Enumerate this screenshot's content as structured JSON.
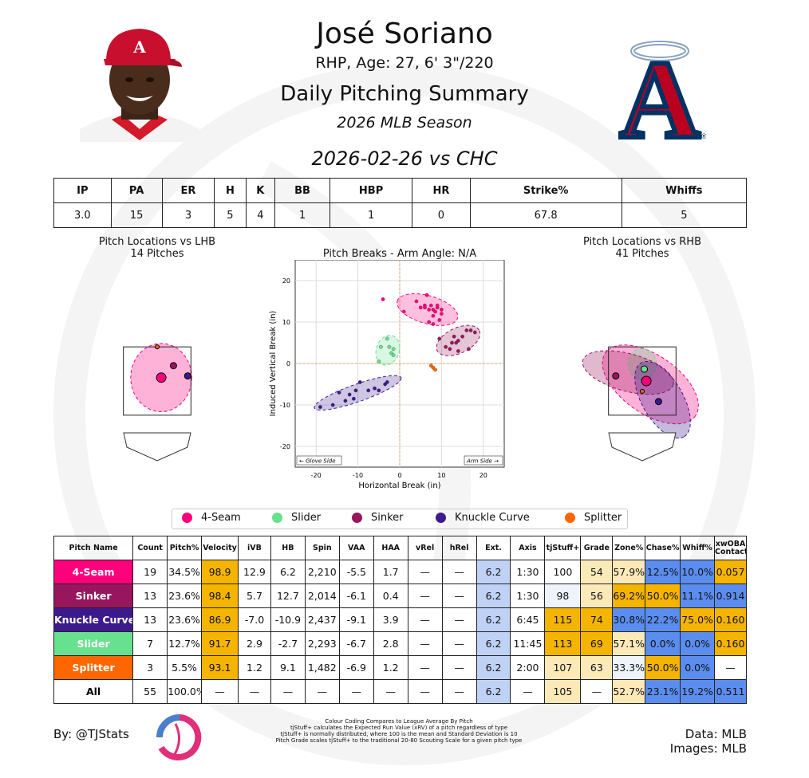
{
  "player": {
    "name": "José Soriano",
    "bio": "RHP, Age: 27, 6' 3\"/220",
    "summary_title": "Daily Pitching Summary",
    "season": "2026 MLB Season",
    "game": "2026-02-26 vs CHC"
  },
  "colors": {
    "four_seam": "#FF007D",
    "sinker": "#98165D",
    "knuckle_curve": "#3C1A8C",
    "slider": "#67E18D",
    "splitter": "#FF6600",
    "above_avg": "#F4B400",
    "below_avg": "#5B8DEF",
    "brand": "#BA0021"
  },
  "line_score": {
    "headers": [
      "IP",
      "PA",
      "ER",
      "H",
      "K",
      "BB",
      "HBP",
      "HR",
      "Strike%",
      "Whiffs"
    ],
    "values": [
      "3.0",
      "15",
      "3",
      "5",
      "4",
      "1",
      "1",
      "0",
      "67.8",
      "5"
    ]
  },
  "pitch_table": {
    "headers": [
      "Pitch Name",
      "Count",
      "Pitch%",
      "Velocity",
      "iVB",
      "HB",
      "Spin",
      "VAA",
      "HAA",
      "vRel",
      "hRel",
      "Ext.",
      "Axis",
      "tjStuff+",
      "Grade",
      "Zone%",
      "Chase%",
      "Whiff%",
      "xwOBA Contact"
    ],
    "rows": [
      {
        "name": "4-Seam",
        "color": "#FF007D",
        "cells": [
          "19",
          "34.5%",
          "98.9",
          "12.9",
          "6.2",
          "2,210",
          "-5.5",
          "1.7",
          "—",
          "—",
          "6.2",
          "1:30",
          "100",
          "54",
          "57.9%",
          "12.5%",
          "10.0%",
          "0.057"
        ]
      },
      {
        "name": "Sinker",
        "color": "#98165D",
        "cells": [
          "13",
          "23.6%",
          "98.4",
          "5.7",
          "12.7",
          "2,014",
          "-6.1",
          "0.4",
          "—",
          "—",
          "6.2",
          "1:30",
          "98",
          "56",
          "69.2%",
          "50.0%",
          "11.1%",
          "0.914"
        ]
      },
      {
        "name": "Knuckle Curve",
        "color": "#3C1A8C",
        "cells": [
          "13",
          "23.6%",
          "86.9",
          "-7.0",
          "-10.9",
          "2,437",
          "-9.1",
          "3.9",
          "—",
          "—",
          "6.2",
          "6:45",
          "115",
          "74",
          "30.8%",
          "22.2%",
          "75.0%",
          "0.160"
        ]
      },
      {
        "name": "Slider",
        "color": "#67E18D",
        "cells": [
          "7",
          "12.7%",
          "91.7",
          "2.9",
          "-2.7",
          "2,293",
          "-6.7",
          "2.8",
          "—",
          "—",
          "6.2",
          "11:45",
          "113",
          "69",
          "57.1%",
          "0.0%",
          "0.0%",
          "0.160"
        ]
      },
      {
        "name": "Splitter",
        "color": "#FF6600",
        "cells": [
          "3",
          "5.5%",
          "93.1",
          "1.2",
          "9.1",
          "1,482",
          "-6.9",
          "1.2",
          "—",
          "—",
          "6.2",
          "2:00",
          "107",
          "63",
          "33.3%",
          "50.0%",
          "0.0%",
          "—"
        ]
      },
      {
        "name": "All",
        "color": "#FFFFFF",
        "cells": [
          "55",
          "100.0%",
          "—",
          "—",
          "—",
          "—",
          "—",
          "—",
          "—",
          "—",
          "6.2",
          "—",
          "105",
          "—",
          "52.7%",
          "23.1%",
          "19.2%",
          "0.511"
        ]
      }
    ],
    "cell_colors": [
      [
        "#fff",
        "#fff",
        "#F4B400",
        "#fff",
        "#fff",
        "#fff",
        "#fff",
        "#fff",
        "#fff",
        "#fff",
        "#BFD2F6",
        "#fff",
        "#fff",
        "#FCE9B8",
        "#FCE9B8",
        "#5B8DEF",
        "#5B8DEF",
        "#F4B400"
      ],
      [
        "#fff",
        "#fff",
        "#F4B400",
        "#fff",
        "#fff",
        "#fff",
        "#fff",
        "#fff",
        "#fff",
        "#fff",
        "#BFD2F6",
        "#fff",
        "#EEF3FC",
        "#FCE9B8",
        "#F4B400",
        "#F4B400",
        "#5B8DEF",
        "#5B8DEF"
      ],
      [
        "#fff",
        "#fff",
        "#F4B400",
        "#fff",
        "#fff",
        "#fff",
        "#fff",
        "#fff",
        "#fff",
        "#fff",
        "#BFD2F6",
        "#fff",
        "#F4B400",
        "#F4B400",
        "#5B8DEF",
        "#5B8DEF",
        "#F4B400",
        "#F4B400"
      ],
      [
        "#fff",
        "#fff",
        "#F4B400",
        "#fff",
        "#fff",
        "#fff",
        "#fff",
        "#fff",
        "#fff",
        "#fff",
        "#BFD2F6",
        "#fff",
        "#F4B400",
        "#F4B400",
        "#FCE9B8",
        "#5B8DEF",
        "#5B8DEF",
        "#F4B400"
      ],
      [
        "#fff",
        "#fff",
        "#F4B400",
        "#fff",
        "#fff",
        "#fff",
        "#fff",
        "#fff",
        "#fff",
        "#fff",
        "#BFD2F6",
        "#fff",
        "#FCE9B8",
        "#FCE9B8",
        "#EEF3FC",
        "#F4B400",
        "#5B8DEF",
        "#fff"
      ],
      [
        "#fff",
        "#fff",
        "#fff",
        "#fff",
        "#fff",
        "#fff",
        "#fff",
        "#fff",
        "#fff",
        "#fff",
        "#BFD2F6",
        "#fff",
        "#FCE9B8",
        "#fff",
        "#FCE9B8",
        "#5B8DEF",
        "#5B8DEF",
        "#5B8DEF"
      ]
    ]
  },
  "legend": [
    "4-Seam",
    "Slider",
    "Sinker",
    "Knuckle Curve",
    "Splitter"
  ],
  "footer": {
    "by": "By: @TJStats",
    "notes": [
      "Colour Coding Compares to League Average By Pitch",
      "tjStuff+ calculates the Expected Run Value (xRV) of a pitch regardless of type",
      "tjStuff+ is normally distributed, where 100 is the mean and Standard Deviation is 10",
      "Pitch Grade scales tjStuff+ to the traditional 20-80 Scouting Scale for a given pitch type"
    ],
    "data_source": "Data: MLB",
    "image_source": "Images: MLB"
  },
  "logo": {
    "letter": "A"
  },
  "chart_data": [
    {
      "type": "scatter",
      "title": "Pitch Locations vs LHB",
      "subtitle": "14 Pitches",
      "xlabel": "",
      "ylabel": "",
      "points": [
        {
          "pitch": "4-Seam",
          "x": 0.1,
          "y": 2.6,
          "mean": true
        },
        {
          "pitch": "Sinker",
          "x": 0.4,
          "y": 2.95,
          "mean": true
        },
        {
          "pitch": "Knuckle Curve",
          "x": 0.75,
          "y": 2.65,
          "mean": true
        },
        {
          "pitch": "Splitter",
          "x": 0.0,
          "y": 3.5,
          "mean": true
        }
      ],
      "ellipses": [
        {
          "pitch": "4-Seam",
          "cx": 0.1,
          "cy": 2.6,
          "rx": 0.75,
          "ry": 1.0,
          "angle": 0
        }
      ]
    },
    {
      "type": "scatter",
      "title": "Pitch Breaks - Arm Angle: N/A",
      "xlabel": "Horizontal Break (in)",
      "ylabel": "Induced Vertical Break (in)",
      "xlim": [
        -25,
        25
      ],
      "ylim": [
        -25,
        25
      ],
      "xticks": [
        -20,
        -10,
        0,
        10,
        20
      ],
      "yticks": [
        -20,
        -10,
        0,
        10,
        20
      ],
      "annotations": [
        "← Glove Side",
        "Arm Side →"
      ],
      "series": [
        {
          "name": "4-Seam",
          "points": [
            [
              -4,
              15.5
            ],
            [
              1,
              12.5
            ],
            [
              4,
              15
            ],
            [
              5,
              13.5
            ],
            [
              6,
              14
            ],
            [
              6.5,
              16.5
            ],
            [
              7,
              13
            ],
            [
              7.5,
              14
            ],
            [
              8,
              11.5
            ],
            [
              8,
              13
            ],
            [
              8.5,
              12.5
            ],
            [
              9,
              13.5
            ],
            [
              9,
              14
            ],
            [
              9.5,
              10.5
            ],
            [
              10,
              12
            ],
            [
              7,
              10
            ],
            [
              6,
              13.5
            ],
            [
              10,
              13
            ],
            [
              8,
              9.5
            ]
          ]
        },
        {
          "name": "Slider",
          "points": [
            [
              -5,
              0.5
            ],
            [
              -4.5,
              4
            ],
            [
              -3,
              6
            ],
            [
              -2.5,
              4
            ],
            [
              -2,
              2.5
            ],
            [
              -1.5,
              3.5
            ],
            [
              -1.5,
              2
            ]
          ]
        },
        {
          "name": "Sinker",
          "points": [
            [
              9.5,
              6
            ],
            [
              11,
              4
            ],
            [
              12,
              3.5
            ],
            [
              12.5,
              5
            ],
            [
              13,
              6.5
            ],
            [
              13.5,
              5
            ],
            [
              14,
              3
            ],
            [
              14,
              5.5
            ],
            [
              15,
              6.5
            ],
            [
              16,
              8
            ],
            [
              16.5,
              3.5
            ],
            [
              17,
              8
            ],
            [
              18,
              7.5
            ]
          ]
        },
        {
          "name": "Knuckle Curve",
          "points": [
            [
              -19,
              -10.5
            ],
            [
              -16,
              -10
            ],
            [
              -14.5,
              -7
            ],
            [
              -13,
              -9
            ],
            [
              -12,
              -7.5
            ],
            [
              -11,
              -8.5
            ],
            [
              -10.5,
              -6.5
            ],
            [
              -9.5,
              -4.5
            ],
            [
              -7.5,
              -6.5
            ],
            [
              -6,
              -6
            ],
            [
              -5,
              -6.5
            ],
            [
              -3.5,
              -5
            ],
            [
              -3,
              -4.5
            ]
          ]
        },
        {
          "name": "Splitter",
          "points": [
            [
              7.5,
              -0.5
            ],
            [
              8,
              -1
            ],
            [
              8.5,
              -1.5
            ]
          ]
        }
      ]
    },
    {
      "type": "scatter",
      "title": "Pitch Locations vs RHB",
      "subtitle": "41 Pitches",
      "xlabel": "",
      "ylabel": "",
      "points": [
        {
          "pitch": "4-Seam",
          "x": 0.1,
          "y": 2.5,
          "mean": true
        },
        {
          "pitch": "Slider",
          "x": 0.05,
          "y": 2.85,
          "mean": true
        },
        {
          "pitch": "Sinker",
          "x": -0.65,
          "y": 2.65,
          "mean": true
        },
        {
          "pitch": "Knuckle Curve",
          "x": 0.4,
          "y": 1.9,
          "mean": true
        },
        {
          "pitch": "Splitter",
          "x": 0.0,
          "y": 2.2,
          "mean": true
        }
      ],
      "ellipses": [
        {
          "pitch": "4-Seam",
          "cx": 0.2,
          "cy": 2.4,
          "rx": 1.35,
          "ry": 0.85,
          "angle": 35
        },
        {
          "pitch": "Slider",
          "cx": 0.0,
          "cy": 3.0,
          "rx": 0.35,
          "ry": 0.45,
          "angle": 0
        },
        {
          "pitch": "Sinker",
          "cx": -0.35,
          "cy": 2.75,
          "rx": 1.15,
          "ry": 0.55,
          "angle": 15
        },
        {
          "pitch": "Knuckle Curve",
          "cx": 0.5,
          "cy": 1.95,
          "rx": 1.05,
          "ry": 0.6,
          "angle": 60
        }
      ]
    }
  ]
}
